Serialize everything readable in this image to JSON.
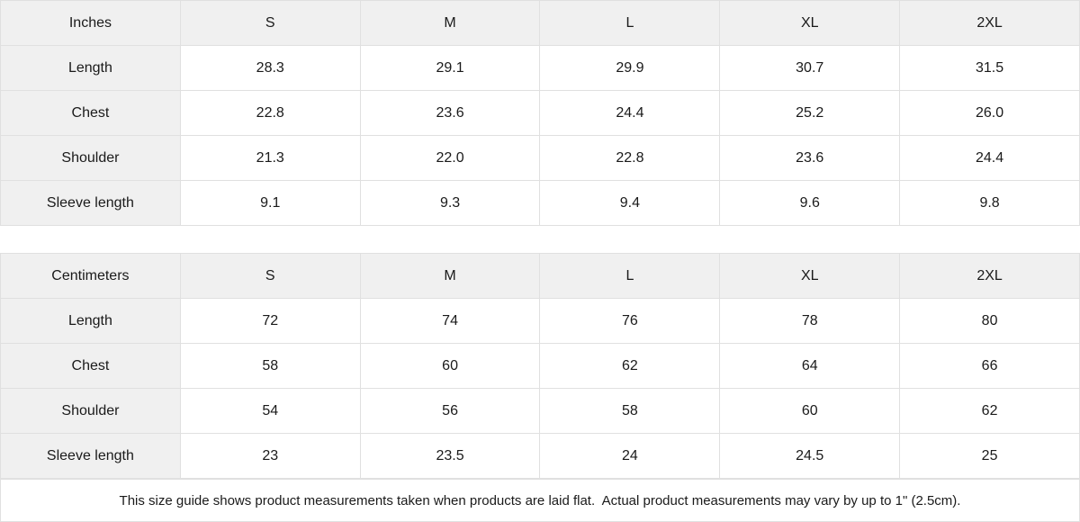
{
  "tables": [
    {
      "unit_label": "Inches",
      "sizes": [
        "S",
        "M",
        "L",
        "XL",
        "2XL"
      ],
      "rows": [
        {
          "label": "Length",
          "values": [
            "28.3",
            "29.1",
            "29.9",
            "30.7",
            "31.5"
          ]
        },
        {
          "label": "Chest",
          "values": [
            "22.8",
            "23.6",
            "24.4",
            "25.2",
            "26.0"
          ]
        },
        {
          "label": "Shoulder",
          "values": [
            "21.3",
            "22.0",
            "22.8",
            "23.6",
            "24.4"
          ]
        },
        {
          "label": "Sleeve length",
          "values": [
            "9.1",
            "9.3",
            "9.4",
            "9.6",
            "9.8"
          ]
        }
      ]
    },
    {
      "unit_label": "Centimeters",
      "sizes": [
        "S",
        "M",
        "L",
        "XL",
        "2XL"
      ],
      "rows": [
        {
          "label": "Length",
          "values": [
            "72",
            "74",
            "76",
            "78",
            "80"
          ]
        },
        {
          "label": "Chest",
          "values": [
            "58",
            "60",
            "62",
            "64",
            "66"
          ]
        },
        {
          "label": "Shoulder",
          "values": [
            "54",
            "56",
            "58",
            "60",
            "62"
          ]
        },
        {
          "label": "Sleeve length",
          "values": [
            "23",
            "23.5",
            "24",
            "24.5",
            "25"
          ]
        }
      ]
    }
  ],
  "footer": {
    "note": "This size guide shows product measurements taken when products are laid flat.  Actual product measurements may vary by up to 1\" (2.5cm)."
  },
  "colors": {
    "header_bg": "#f0f0f0",
    "border": "#e0e0e0",
    "text": "#1a1a1a",
    "cell_bg": "#ffffff"
  }
}
